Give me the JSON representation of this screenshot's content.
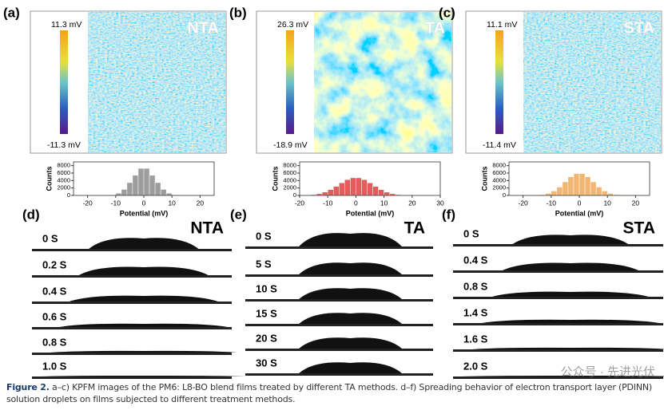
{
  "panels": [
    {
      "label": "(a)",
      "name": "NTA",
      "scale_max": "11.3 mV",
      "scale_min": "-11.3 mV",
      "histogram": {
        "type": "histogram",
        "color": "#8c8c8c",
        "bins": [
          -14,
          -12,
          -10,
          -8,
          -6,
          -4,
          -2,
          0,
          2,
          4,
          6,
          8,
          10,
          12,
          14
        ],
        "counts": [
          40,
          170,
          600,
          1620,
          3440,
          5390,
          7270,
          7270,
          5390,
          3440,
          1620,
          600,
          170,
          40
        ],
        "xlim": [
          -25,
          25
        ],
        "xticks": [
          -20,
          -10,
          0,
          10,
          20
        ],
        "ylim": [
          0,
          9000
        ],
        "yticks": [
          0,
          2000,
          4000,
          6000,
          8000
        ],
        "xlabel": "Potential (mV)",
        "ylabel": "Counts"
      }
    },
    {
      "label": "(b)",
      "name": "TA",
      "scale_max": "26.3 mV",
      "scale_min": "-18.9 mV",
      "histogram": {
        "type": "histogram",
        "color": "#e0403f",
        "bins": [
          -18,
          -16,
          -14,
          -12,
          -10,
          -8,
          -6,
          -4,
          -2,
          0,
          2,
          4,
          6,
          8,
          10,
          12,
          14,
          16,
          18
        ],
        "counts": [
          90,
          210,
          460,
          900,
          1560,
          2430,
          3390,
          4240,
          4730,
          4730,
          4240,
          3390,
          2430,
          1560,
          900,
          460,
          210,
          90
        ],
        "xlim": [
          -20,
          30
        ],
        "xticks": [
          -20,
          -10,
          0,
          10,
          20,
          30
        ],
        "ylim": [
          0,
          9000
        ],
        "yticks": [
          0,
          2000,
          4000,
          6000,
          8000
        ],
        "xlabel": "Potential (mV)",
        "ylabel": "Counts"
      }
    },
    {
      "label": "(c)",
      "name": "STA",
      "scale_max": "11.1 mV",
      "scale_min": "-11.4 mV",
      "histogram": {
        "type": "histogram",
        "color": "#f0a95a",
        "bins": [
          -16,
          -14,
          -12,
          -10,
          -8,
          -6,
          -4,
          -2,
          0,
          2,
          4,
          6,
          8,
          10,
          12,
          14,
          16
        ],
        "counts": [
          70,
          200,
          530,
          1190,
          2250,
          3640,
          5010,
          5880,
          5880,
          5010,
          3640,
          2250,
          1190,
          530,
          200,
          70
        ],
        "xlim": [
          -25,
          25
        ],
        "xticks": [
          -20,
          -10,
          0,
          10,
          20
        ],
        "ylim": [
          0,
          9000
        ],
        "yticks": [
          0,
          2000,
          4000,
          6000,
          8000
        ],
        "xlabel": "Potential (mV)",
        "ylabel": "Counts"
      }
    }
  ],
  "droplets": [
    {
      "label": "(d)",
      "name": "NTA",
      "times": [
        "0 S",
        "0.2 S",
        "0.4 S",
        "0.6 S",
        "0.8 S",
        "1.0 S"
      ]
    },
    {
      "label": "(e)",
      "name": "TA",
      "times": [
        "0 S",
        "5 S",
        "10 S",
        "15 S",
        "20 S",
        "30 S"
      ]
    },
    {
      "label": "(f)",
      "name": "STA",
      "times": [
        "0 S",
        "0.4 S",
        "0.8 S",
        "1.4 S",
        "1.6 S",
        "2.0 S"
      ]
    }
  ],
  "caption": {
    "label": "Figure 2.",
    "text": "a–c) KPFM images of the PM6: L8-BO blend films treated by different TA methods. d–f) Spreading behavior of electron transport layer (PDINN) solution droplets on films subjected to different treatment methods."
  },
  "watermark": "公众号 · 先进光伏"
}
